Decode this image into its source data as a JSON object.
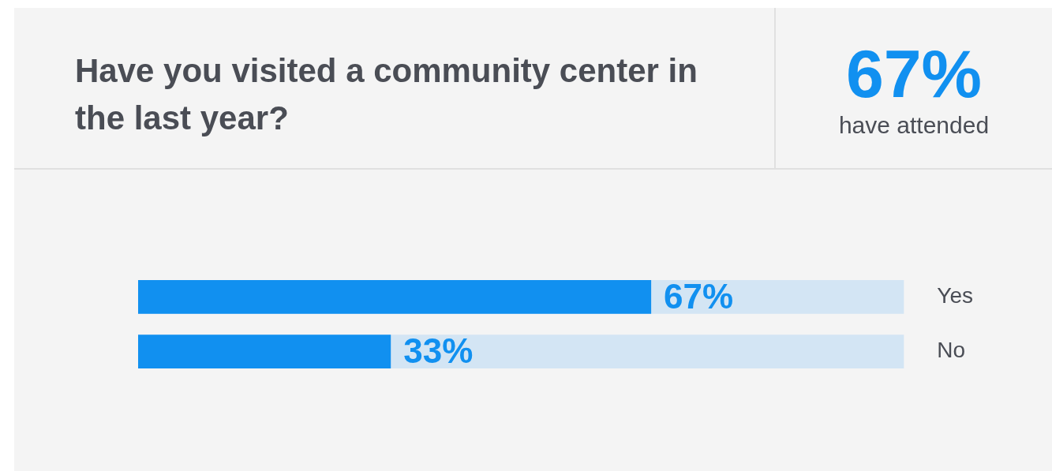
{
  "chart_data": {
    "type": "bar",
    "orientation": "horizontal",
    "title": "Have you visited a community center in the last year?",
    "annotations": [
      "67%",
      "have attended"
    ],
    "categories": [
      "Yes",
      "No"
    ],
    "values": [
      67,
      33
    ],
    "color": "#1190f0",
    "value_labels": [
      "67%",
      "33%"
    ],
    "xlim": [
      0,
      100
    ]
  }
}
